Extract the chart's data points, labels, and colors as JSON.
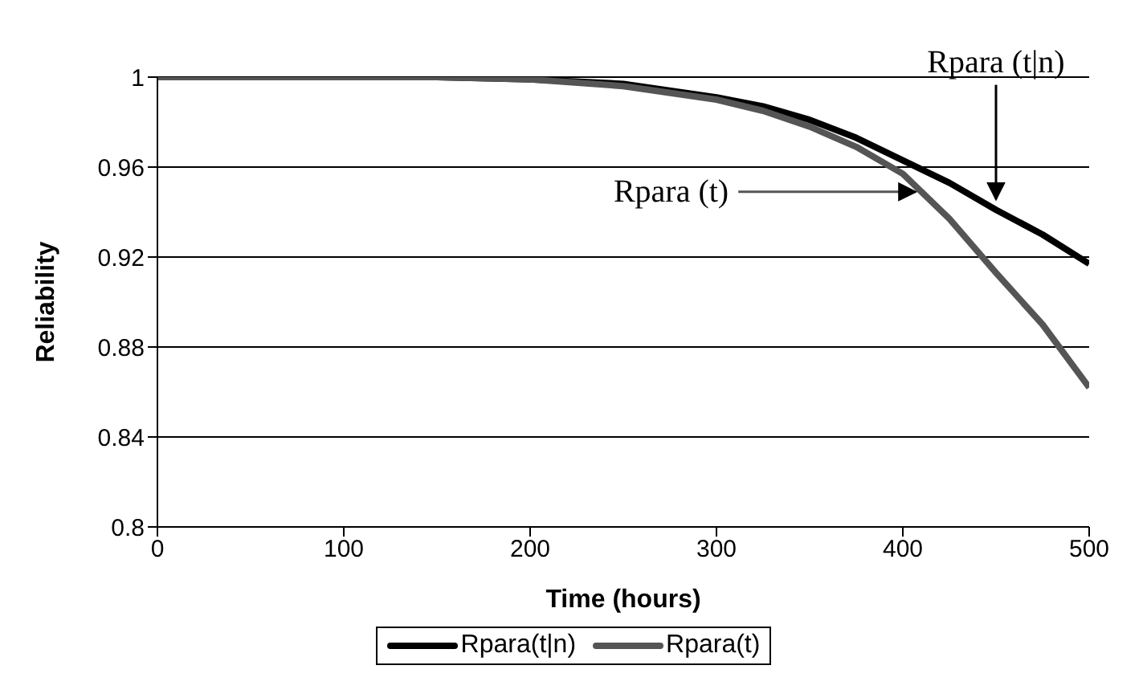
{
  "chart_data": {
    "type": "line",
    "xlabel": "Time (hours)",
    "ylabel": "Reliability",
    "x": [
      0,
      100,
      150,
      200,
      250,
      300,
      325,
      350,
      375,
      400,
      425,
      450,
      475,
      500
    ],
    "series": [
      {
        "name": "Rpara(t|n)",
        "color": "#000000",
        "values": [
          1,
          1,
          1,
          0.999,
          0.997,
          0.991,
          0.987,
          0.981,
          0.973,
          0.963,
          0.953,
          0.941,
          0.93,
          0.917
        ]
      },
      {
        "name": "Rpara(t)",
        "color": "#555555",
        "values": [
          1,
          1,
          1,
          0.999,
          0.996,
          0.99,
          0.985,
          0.978,
          0.969,
          0.957,
          0.937,
          0.913,
          0.89,
          0.862
        ]
      }
    ],
    "xlim": [
      0,
      500
    ],
    "xticks": [
      0,
      100,
      200,
      300,
      400,
      500
    ],
    "ylim": [
      0.8,
      1
    ],
    "yticks": [
      0.8,
      0.84,
      0.88,
      0.92,
      0.96,
      1
    ],
    "grid": "y",
    "legend": "bottom",
    "marker": "none",
    "line_style": "solid",
    "annotations": [
      {
        "text": "Rpara (t|n)",
        "x": 450,
        "y": 0.943
      },
      {
        "text": "Rpara (t)",
        "x": 410,
        "y": 0.949
      }
    ]
  }
}
